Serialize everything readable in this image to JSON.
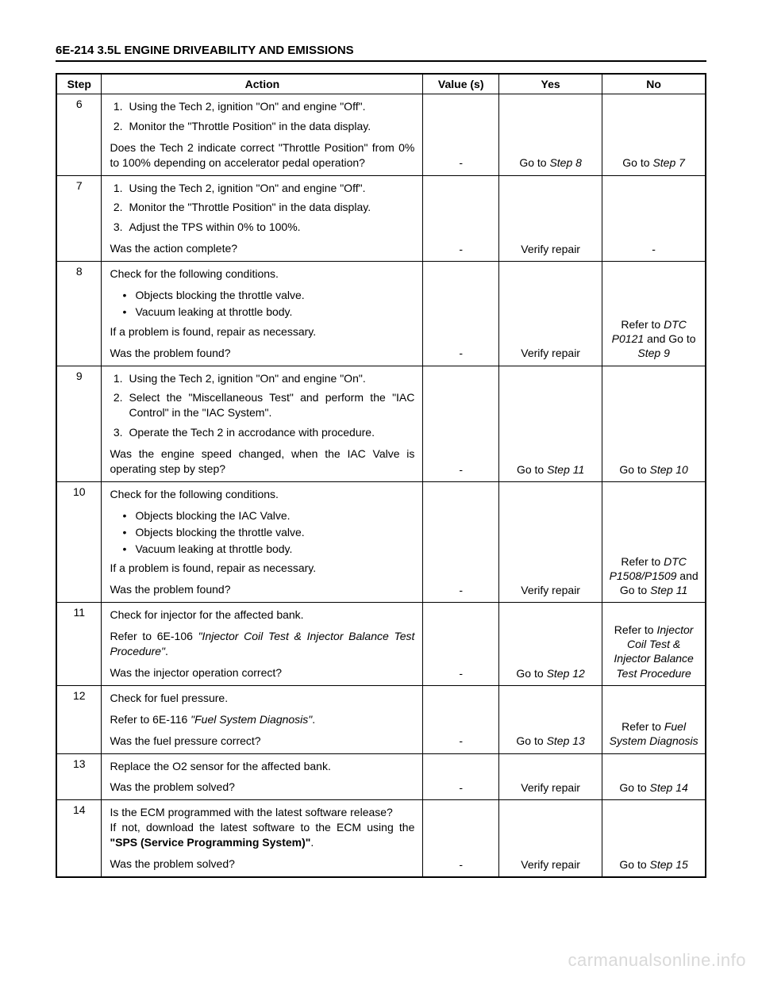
{
  "header": "6E-214 3.5L ENGINE DRIVEABILITY AND EMISSIONS",
  "columns": {
    "step": "Step",
    "action": "Action",
    "value": "Value (s)",
    "yes": "Yes",
    "no": "No"
  },
  "rows": [
    {
      "step": "6",
      "action_html": "<ol class='num'><li>Using the Tech 2, ignition \"On\" and engine \"Off\".</li><li>Monitor the \"Throttle Position\" in the data display.</li></ol><p class='para justify'>Does the Tech 2 indicate correct \"Throttle Position\" from 0% to 100% depending on accelerator pedal operation?</p>",
      "value": "-",
      "yes_html": "Go to <span class='ital'>Step 8</span>",
      "no_html": "Go to <span class='ital'>Step 7</span>"
    },
    {
      "step": "7",
      "action_html": "<ol class='num'><li>Using the Tech 2, ignition \"On\" and engine \"Off\".</li><li>Monitor the \"Throttle Position\" in the data display.</li><li>Adjust the TPS within 0% to 100%.</li></ol><p class='para q'>Was the action complete?</p>",
      "value": "-",
      "yes_html": "Verify repair",
      "no_html": "-"
    },
    {
      "step": "8",
      "action_html": "<p class='para'>Check for the following conditions.</p><ul class='bul'><li>Objects blocking the throttle valve.</li><li>Vacuum leaking at throttle body.</li></ul><p class='para'>If a problem is found, repair as necessary.</p><p class='para q'>Was the problem found?</p>",
      "value": "-",
      "yes_html": "Verify repair",
      "no_html": "Refer to <span class='ital'>DTC P0121</span> and Go to <span class='ital'>Step 9</span>"
    },
    {
      "step": "9",
      "action_html": "<ol class='num'><li>Using the Tech 2, ignition \"On\" and engine \"On\".</li><li class='justify'>Select the \"Miscellaneous Test\" and perform the \"IAC Control\" in the \"IAC System\".</li><li>Operate the Tech 2 in accrodance with procedure.</li></ol><p class='para justify'>Was the engine speed changed, when the IAC Valve is operating step by step?</p>",
      "value": "-",
      "yes_html": "Go to <span class='ital'>Step 11</span>",
      "no_html": "Go to <span class='ital'>Step 10</span>"
    },
    {
      "step": "10",
      "action_html": "<p class='para'>Check for the following conditions.</p><ul class='bul'><li>Objects blocking the IAC Valve.</li><li>Objects blocking the throttle valve.</li><li>Vacuum leaking at throttle body.</li></ul><p class='para'>If a problem is found, repair as necessary.</p><p class='para q'>Was the problem found?</p>",
      "value": "-",
      "yes_html": "Verify repair",
      "no_html": "Refer to <span class='ital'>DTC P1508/P1509</span> and Go to <span class='ital'>Step 11</span>"
    },
    {
      "step": "11",
      "action_html": "<p class='para'>Check for injector for the affected bank.</p><p class='para justify'>Refer to 6E-106 <span class='ital'>\"Injector Coil Test &amp; Injector Balance Test Procedure\"</span>.</p><p class='para q'>Was the injector operation correct?</p>",
      "value": "-",
      "yes_html": "Go to <span class='ital'>Step 12</span>",
      "no_html": "Refer to <span class='ital'>Injector Coil Test &amp; Injector Balance Test Procedure</span>"
    },
    {
      "step": "12",
      "action_html": "<p class='para'>Check for fuel pressure.</p><p class='para'>Refer to 6E-116 <span class='ital'>\"Fuel System Diagnosis\"</span>.</p><p class='para q'>Was the fuel pressure correct?</p>",
      "value": "-",
      "yes_html": "Go to <span class='ital'>Step 13</span>",
      "no_html": "Refer to <span class='ital'>Fuel System Diagnosis</span>"
    },
    {
      "step": "13",
      "action_html": "<p class='para'>Replace the O2 sensor for the affected bank.</p><p class='para q'>Was the problem solved?</p>",
      "value": "-",
      "yes_html": "Verify repair",
      "no_html": "Go to <span class='ital'>Step 14</span>"
    },
    {
      "step": "14",
      "action_html": "<p class='para justify'>Is the ECM programmed with the latest software release?<br>If not, download the latest software to the ECM using the <span class='bold'>\"SPS (Service Programming System)\"</span>.</p><p class='para q'>Was the problem solved?</p>",
      "value": "-",
      "yes_html": "Verify repair",
      "no_html": "Go to <span class='ital'>Step 15</span>"
    }
  ],
  "watermark": "carmanualsonline.info"
}
